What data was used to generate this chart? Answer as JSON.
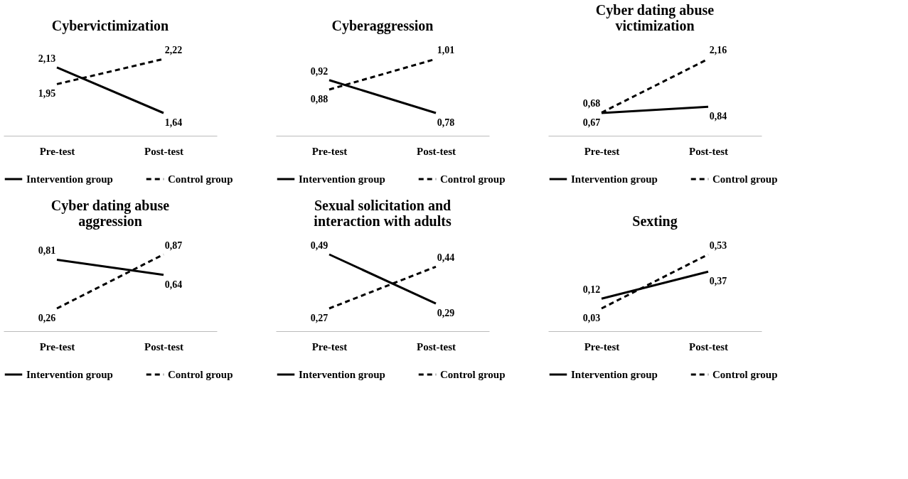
{
  "chart_data": [
    {
      "type": "line",
      "title": "Cybervictimization",
      "categories": [
        "Pre-test",
        "Post-test"
      ],
      "tick_labels": "x",
      "legend": "bottom",
      "grid": false,
      "series": [
        {
          "name": "Intervention group",
          "color": "#000000",
          "line_style": "solid",
          "values": [
            2.13,
            1.64
          ],
          "value_labels": [
            "2,13",
            "1,64"
          ]
        },
        {
          "name": "Control group",
          "color": "#000000",
          "line_style": "dashed",
          "values": [
            1.95,
            2.22
          ],
          "value_labels": [
            "1,95",
            "2,22"
          ]
        }
      ]
    },
    {
      "type": "line",
      "title": "Cyberaggression",
      "categories": [
        "Pre-test",
        "Post-test"
      ],
      "tick_labels": "x",
      "legend": "bottom",
      "grid": false,
      "series": [
        {
          "name": "Intervention group",
          "color": "#000000",
          "line_style": "solid",
          "values": [
            0.92,
            0.78
          ],
          "value_labels": [
            "0,92",
            "0,78"
          ]
        },
        {
          "name": "Control group",
          "color": "#000000",
          "line_style": "dashed",
          "values": [
            0.88,
            1.01
          ],
          "value_labels": [
            "0,88",
            "1,01"
          ]
        }
      ]
    },
    {
      "type": "line",
      "title": "Cyber dating abuse victimization",
      "categories": [
        "Pre-test",
        "Post-test"
      ],
      "tick_labels": "x",
      "legend": "bottom",
      "grid": false,
      "series": [
        {
          "name": "Intervention group",
          "color": "#000000",
          "line_style": "solid",
          "values": [
            0.67,
            0.84
          ],
          "value_labels": [
            "0,67",
            "0,84"
          ]
        },
        {
          "name": "Control group",
          "color": "#000000",
          "line_style": "dashed",
          "values": [
            0.68,
            2.16
          ],
          "value_labels": [
            "0,68",
            "2,16"
          ]
        }
      ]
    },
    {
      "type": "line",
      "title": "Cyber dating abuse aggression",
      "categories": [
        "Pre-test",
        "Post-test"
      ],
      "tick_labels": "x",
      "legend": "bottom",
      "grid": false,
      "series": [
        {
          "name": "Intervention group",
          "color": "#000000",
          "line_style": "solid",
          "values": [
            0.81,
            0.64
          ],
          "value_labels": [
            "0,81",
            "0,64"
          ]
        },
        {
          "name": "Control group",
          "color": "#000000",
          "line_style": "dashed",
          "values": [
            0.26,
            0.87
          ],
          "value_labels": [
            "0,26",
            "0,87"
          ]
        }
      ]
    },
    {
      "type": "line",
      "title": "Sexual solicitation and interaction with adults",
      "categories": [
        "Pre-test",
        "Post-test"
      ],
      "tick_labels": "x",
      "legend": "bottom",
      "grid": false,
      "series": [
        {
          "name": "Intervention group",
          "color": "#000000",
          "line_style": "solid",
          "values": [
            0.49,
            0.29
          ],
          "value_labels": [
            "0,49",
            "0,29"
          ]
        },
        {
          "name": "Control group",
          "color": "#000000",
          "line_style": "dashed",
          "values": [
            0.27,
            0.44
          ],
          "value_labels": [
            "0,27",
            "0,44"
          ]
        }
      ]
    },
    {
      "type": "line",
      "title": "Sexting",
      "categories": [
        "Pre-test",
        "Post-test"
      ],
      "tick_labels": "x",
      "legend": "bottom",
      "grid": false,
      "series": [
        {
          "name": "Intervention group",
          "color": "#000000",
          "line_style": "solid",
          "values": [
            0.12,
            0.37
          ],
          "value_labels": [
            "0,12",
            "0,37"
          ]
        },
        {
          "name": "Control group",
          "color": "#000000",
          "line_style": "dashed",
          "values": [
            0.03,
            0.53
          ],
          "value_labels": [
            "0,03",
            "0,53"
          ]
        }
      ]
    }
  ]
}
